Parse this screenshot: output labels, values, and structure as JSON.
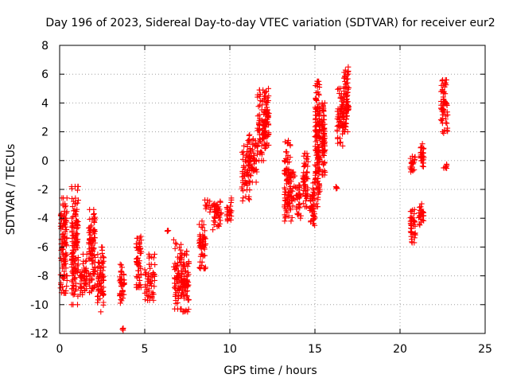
{
  "chart_data": {
    "type": "scatter",
    "title": "Day 196 of 2023, Sidereal Day-to-day VTEC variation (SDTVAR) for receiver eur2",
    "xlabel": "GPS time / hours",
    "ylabel": "SDTVAR / TECUs",
    "xlim": [
      0,
      25
    ],
    "ylim": [
      -12,
      8
    ],
    "xticks": [
      0,
      5,
      10,
      15,
      20,
      25
    ],
    "yticks": [
      -12,
      -10,
      -8,
      -6,
      -4,
      -2,
      0,
      2,
      4,
      6,
      8
    ],
    "grid": true,
    "marker": "+",
    "color": "#ff0000",
    "clusters": [
      {
        "x0": 0.05,
        "x1": 0.45,
        "y0": -9.2,
        "y1": -2.6
      },
      {
        "x0": 0.7,
        "x1": 1.1,
        "y0": -10.0,
        "y1": -1.8
      },
      {
        "x0": 1.2,
        "x1": 1.6,
        "y0": -9.5,
        "y1": -6.5
      },
      {
        "x0": 1.7,
        "x1": 2.1,
        "y0": -9.5,
        "y1": -3.4
      },
      {
        "x0": 2.2,
        "x1": 2.6,
        "y0": -10.5,
        "y1": -6.0
      },
      {
        "x0": 3.5,
        "x1": 3.8,
        "y0": -10.0,
        "y1": -7.2
      },
      {
        "x0": 3.65,
        "x1": 3.75,
        "y0": -11.9,
        "y1": -11.6
      },
      {
        "x0": 4.5,
        "x1": 4.8,
        "y0": -8.8,
        "y1": -5.2
      },
      {
        "x0": 5.0,
        "x1": 5.6,
        "y0": -9.7,
        "y1": -6.5
      },
      {
        "x0": 6.3,
        "x1": 6.4,
        "y0": -5.0,
        "y1": -4.8
      },
      {
        "x0": 6.7,
        "x1": 7.2,
        "y0": -10.3,
        "y1": -5.5
      },
      {
        "x0": 7.2,
        "x1": 7.6,
        "y0": -10.5,
        "y1": -6.3
      },
      {
        "x0": 8.2,
        "x1": 8.6,
        "y0": -7.5,
        "y1": -4.2
      },
      {
        "x0": 8.5,
        "x1": 9.2,
        "y0": -3.6,
        "y1": -2.7
      },
      {
        "x0": 9.0,
        "x1": 9.5,
        "y0": -4.8,
        "y1": -2.8
      },
      {
        "x0": 9.8,
        "x1": 10.1,
        "y0": -4.2,
        "y1": -2.6
      },
      {
        "x0": 10.7,
        "x1": 11.2,
        "y0": -2.8,
        "y1": 1.4
      },
      {
        "x0": 11.1,
        "x1": 11.6,
        "y0": -1.5,
        "y1": 1.8
      },
      {
        "x0": 11.6,
        "x1": 12.1,
        "y0": 0.0,
        "y1": 4.9
      },
      {
        "x0": 12.0,
        "x1": 12.3,
        "y0": 1.0,
        "y1": 5.0
      },
      {
        "x0": 13.2,
        "x1": 13.6,
        "y0": -4.2,
        "y1": 1.4
      },
      {
        "x0": 13.6,
        "x1": 14.2,
        "y0": -4.0,
        "y1": -0.8
      },
      {
        "x0": 14.3,
        "x1": 14.6,
        "y0": -3.2,
        "y1": 0.5
      },
      {
        "x0": 14.7,
        "x1": 15.0,
        "y0": -4.5,
        "y1": -1.5
      },
      {
        "x0": 15.0,
        "x1": 15.3,
        "y0": -3.2,
        "y1": 5.5
      },
      {
        "x0": 15.4,
        "x1": 15.6,
        "y0": -1.0,
        "y1": 4.0
      },
      {
        "x0": 16.2,
        "x1": 16.3,
        "y0": -2.0,
        "y1": -1.8
      },
      {
        "x0": 16.3,
        "x1": 16.7,
        "y0": 1.0,
        "y1": 5.0
      },
      {
        "x0": 16.7,
        "x1": 17.0,
        "y0": 2.0,
        "y1": 6.5
      },
      {
        "x0": 20.6,
        "x1": 20.9,
        "y0": -5.7,
        "y1": -3.4
      },
      {
        "x0": 20.6,
        "x1": 20.9,
        "y0": -1.0,
        "y1": 0.3
      },
      {
        "x0": 21.1,
        "x1": 21.4,
        "y0": -4.5,
        "y1": -3.0
      },
      {
        "x0": 21.2,
        "x1": 21.4,
        "y0": -0.5,
        "y1": 1.2
      },
      {
        "x0": 22.4,
        "x1": 22.8,
        "y0": 1.9,
        "y1": 5.6
      },
      {
        "x0": 22.55,
        "x1": 22.75,
        "y0": -0.6,
        "y1": -0.2
      }
    ]
  }
}
